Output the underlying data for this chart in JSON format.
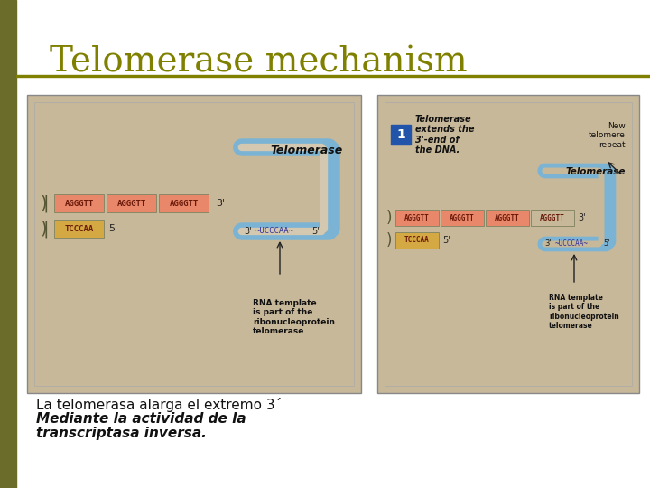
{
  "title": "Telomerase mechanism",
  "title_color": "#808000",
  "title_fontsize": 28,
  "bg_color": "#ffffff",
  "left_bar_color": "#6b6b2a",
  "horizontal_line_color": "#808000",
  "subtitle_line1": "La telomerasa alarga el extremo 3´",
  "subtitle_line2": "Mediante la actividad de la",
  "subtitle_line3": "transcriptasa inversa.",
  "subtitle_fontsize": 11,
  "diagram_bg": "#c8b89a",
  "diagram_border": "#888888",
  "dna_top_color": "#e8876a",
  "dna_bot_color": "#d4a843",
  "telomerase_loop_color": "#7ab3d4",
  "rna_template_color": "#7ab3d4",
  "text_on_dna": "#6b1a0a",
  "box1_label_color": "#1a1a6b",
  "arrow_color": "#222222"
}
